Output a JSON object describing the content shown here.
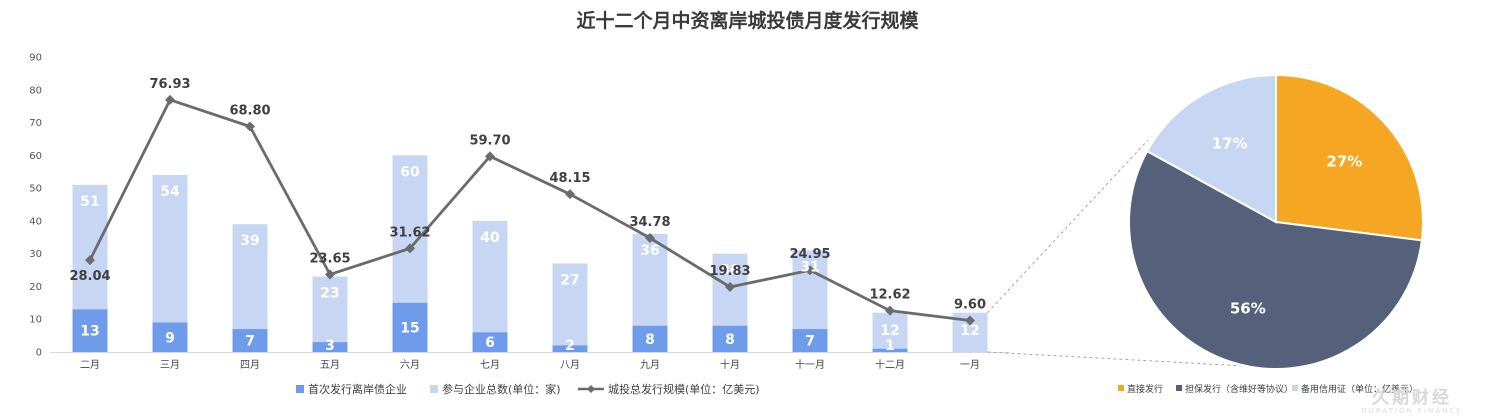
{
  "title": "近十二个月中资离岸城投债月度发行规模",
  "chart_data": [
    {
      "type": "bar+line",
      "categories": [
        "二月",
        "三月",
        "四月",
        "五月",
        "六月",
        "七月",
        "八月",
        "九月",
        "十月",
        "十一月",
        "十二月",
        "一月"
      ],
      "ylim": [
        0,
        90
      ],
      "yticks": [
        0,
        10,
        20,
        30,
        40,
        50,
        60,
        70,
        80,
        90
      ],
      "series": [
        {
          "name": "首次发行离岸债企业",
          "kind": "bar",
          "color": "#6E9BEA",
          "values": [
            13,
            9,
            7,
            3,
            15,
            6,
            2,
            8,
            8,
            7,
            1,
            0
          ],
          "labels": [
            "13",
            "9",
            "7",
            "3",
            "15",
            "6",
            "2",
            "8",
            "8",
            "7",
            "1",
            ""
          ]
        },
        {
          "name": "参与企业总数(单位：家)",
          "kind": "bar",
          "color": "#C7D6F2",
          "values": [
            51,
            54,
            39,
            23,
            60,
            40,
            27,
            36,
            30,
            31,
            12,
            12
          ],
          "labels": [
            "51",
            "54",
            "39",
            "23",
            "60",
            "40",
            "27",
            "36",
            "30",
            "31",
            "12",
            "12"
          ]
        },
        {
          "name": "城投总发行规模(单位：亿美元)",
          "kind": "line",
          "color": "#6B6B6B",
          "values": [
            28.04,
            76.93,
            68.8,
            23.65,
            31.62,
            59.7,
            48.15,
            34.78,
            19.83,
            24.95,
            12.62,
            9.6
          ],
          "labels": [
            "28.04",
            "76.93",
            "68.80",
            "23.65",
            "31.62",
            "59.70",
            "48.15",
            "34.78",
            "19.83",
            "24.95",
            "12.62",
            "9.60"
          ]
        }
      ]
    },
    {
      "type": "pie",
      "slices": [
        {
          "name": "直接发行",
          "value": 27,
          "label": "27%",
          "color": "#F5A623"
        },
        {
          "name": "担保发行（含维好等协议）",
          "value": 56,
          "label": "56%",
          "color": "#55607A"
        },
        {
          "name": "备用信用证（单位：亿美元）",
          "value": 17,
          "label": "17%",
          "color": "#C7D6F2"
        }
      ]
    }
  ],
  "watermark": {
    "main": "久期财经",
    "sub": "DURATION FINANCE"
  }
}
